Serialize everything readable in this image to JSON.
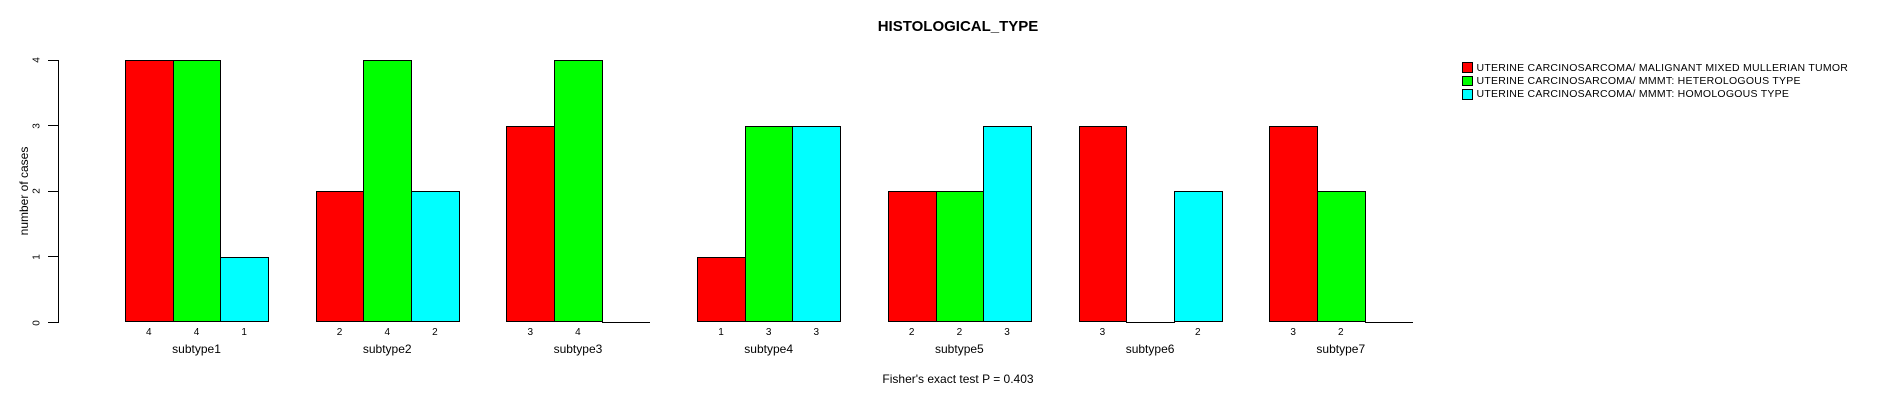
{
  "page": {
    "background": "#FFFFFF"
  },
  "header": {
    "title": "HISTOLOGICAL_TYPE"
  },
  "footer": {
    "annotation": "Fisher's exact test P = 0.403"
  },
  "chart_data": {
    "type": "bar",
    "title": "HISTOLOGICAL_TYPE",
    "xlabel": "",
    "ylabel": "number of cases",
    "ylim": [
      0,
      4
    ],
    "yticks": [
      0,
      1,
      2,
      3,
      4
    ],
    "grid": false,
    "legend_position": "top-right",
    "bar_colors": [
      "#FF0000",
      "#00FF00",
      "#00FFFF"
    ],
    "categories": [
      "subtype1",
      "subtype2",
      "subtype3",
      "subtype4",
      "subtype5",
      "subtype6",
      "subtype7"
    ],
    "series": [
      {
        "name": "UTERINE CARCINOSARCOMA/ MALIGNANT MIXED MULLERIAN TUMOR",
        "color": "#FF0000",
        "values": [
          4,
          2,
          3,
          1,
          2,
          3,
          3
        ]
      },
      {
        "name": "UTERINE CARCINOSARCOMA/ MMMT: HETEROLOGOUS TYPE",
        "color": "#00FF00",
        "values": [
          4,
          4,
          4,
          3,
          2,
          0,
          2
        ]
      },
      {
        "name": "UTERINE CARCINOSARCOMA/ MMMT: HOMOLOGOUS TYPE",
        "color": "#00FFFF",
        "values": [
          1,
          2,
          0,
          3,
          3,
          2,
          0
        ]
      }
    ],
    "bar_value_labels": "each nonzero bar shows its value beneath the axis; zero bars show a flat line and no label",
    "annotation": "Fisher's exact test P = 0.403"
  }
}
